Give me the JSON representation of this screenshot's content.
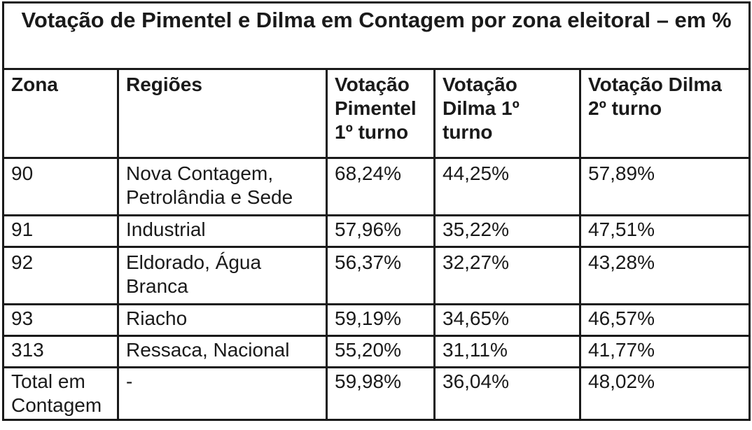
{
  "chart_data": {
    "type": "table",
    "title": "Votação de Pimentel e Dilma em Contagem por zona eleitoral – em %",
    "columns": [
      "Zona",
      "Regiões",
      "Votação Pimentel 1º turno",
      "Votação Dilma 1º turno",
      "Votação Dilma 2º turno"
    ],
    "rows": [
      [
        "90",
        "Nova Contagem, Petrolândia e Sede",
        "68,24%",
        "44,25%",
        "57,89%"
      ],
      [
        "91",
        "Industrial",
        "57,96%",
        "35,22%",
        "47,51%"
      ],
      [
        "92",
        "Eldorado, Água Branca",
        "56,37%",
        "32,27%",
        "43,28%"
      ],
      [
        "93",
        "Riacho",
        "59,19%",
        "34,65%",
        "46,57%"
      ],
      [
        "313",
        "Ressaca, Nacional",
        "55,20%",
        "31,11%",
        "41,77%"
      ],
      [
        "Total em Contagem",
        "-",
        "59,98%",
        "36,04%",
        "48,02%"
      ]
    ]
  }
}
